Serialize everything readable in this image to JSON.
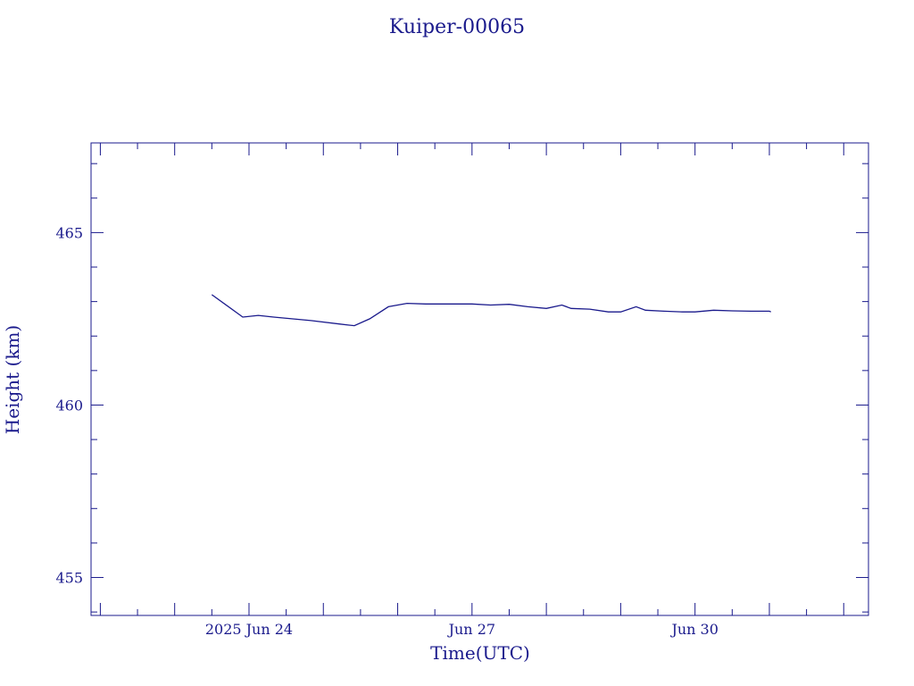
{
  "chart_data": {
    "type": "line",
    "title": "Kuiper-00065",
    "xlabel": "Time(UTC)",
    "ylabel": "Height (km)",
    "color": "#1a1a8c",
    "grid": false,
    "xlim": [
      "2025-06-21T21:00",
      "2025-07-02T08:00"
    ],
    "ylim": [
      453.9,
      467.6
    ],
    "x_ticks": [
      {
        "at": "2025-06-24T00:00",
        "label": "2025 Jun 24"
      },
      {
        "at": "2025-06-27T00:00",
        "label": "Jun 27"
      },
      {
        "at": "2025-06-30T00:00",
        "label": "Jun 30"
      }
    ],
    "y_ticks": [
      {
        "at": 455,
        "label": "455"
      },
      {
        "at": 460,
        "label": "460"
      },
      {
        "at": 465,
        "label": "465"
      }
    ],
    "series": [
      {
        "x": [
          "2025-06-23T12:00",
          "2025-06-23T22:00",
          "2025-06-24T03:00",
          "2025-06-24T08:00",
          "2025-06-24T20:00",
          "2025-06-25T08:00",
          "2025-06-25T10:00",
          "2025-06-25T15:00",
          "2025-06-25T21:00",
          "2025-06-26T03:00",
          "2025-06-26T09:00",
          "2025-06-26T12:00",
          "2025-06-26T18:00",
          "2025-06-27T00:00",
          "2025-06-27T06:00",
          "2025-06-27T12:00",
          "2025-06-27T18:00",
          "2025-06-28T00:00",
          "2025-06-28T05:00",
          "2025-06-28T08:00",
          "2025-06-28T14:00",
          "2025-06-28T20:00",
          "2025-06-29T00:00",
          "2025-06-29T05:00",
          "2025-06-29T08:00",
          "2025-06-29T14:00",
          "2025-06-29T20:00",
          "2025-06-30T00:00",
          "2025-06-30T06:00",
          "2025-06-30T12:00",
          "2025-06-30T18:00",
          "2025-07-01T00:00",
          "2025-07-01T00:30"
        ],
        "y": [
          463.2,
          462.55,
          462.6,
          462.55,
          462.45,
          462.32,
          462.3,
          462.5,
          462.85,
          462.95,
          462.93,
          462.93,
          462.93,
          462.93,
          462.9,
          462.92,
          462.85,
          462.8,
          462.9,
          462.8,
          462.78,
          462.7,
          462.7,
          462.85,
          462.75,
          462.72,
          462.7,
          462.7,
          462.75,
          462.73,
          462.72,
          462.72,
          462.7
        ]
      }
    ]
  }
}
